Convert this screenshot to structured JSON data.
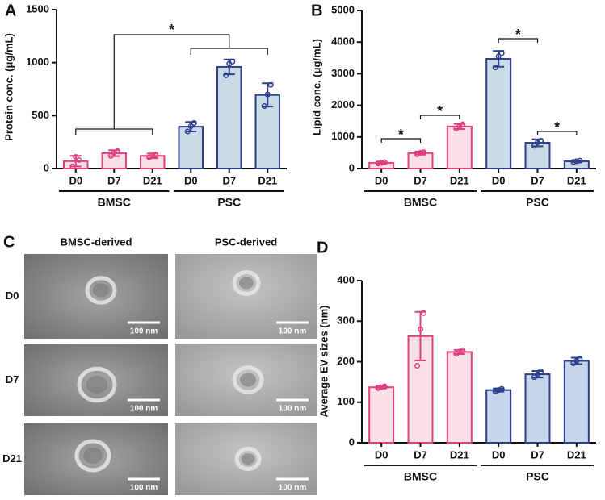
{
  "chart_data": [
    {
      "type": "bar",
      "panel_label": "A",
      "y_label": "Protein conc. (μg/mL)",
      "ylim": [
        0,
        1500
      ],
      "yticks": [
        0,
        500,
        1000,
        1500
      ],
      "groups": [
        {
          "name": "BMSC",
          "color": "#e0407f",
          "fill": "#f9dfe6",
          "categories": [
            "D0",
            "D7",
            "D21"
          ],
          "values": [
            70,
            145,
            120
          ],
          "errors": [
            50,
            28,
            22
          ],
          "points": [
            [
              20,
              110,
              80
            ],
            [
              120,
              150,
              165
            ],
            [
              105,
              125,
              130
            ]
          ]
        },
        {
          "name": "PSC",
          "color": "#2e3f8a",
          "fill": "#c9dbe6",
          "categories": [
            "D0",
            "D7",
            "D21"
          ],
          "values": [
            395,
            960,
            695
          ],
          "errors": [
            45,
            70,
            110
          ],
          "points": [
            [
              350,
              400,
              430
            ],
            [
              880,
              990,
              1010
            ],
            [
              590,
              700,
              790
            ]
          ]
        }
      ],
      "annotations": [
        {
          "text": "*"
        }
      ]
    },
    {
      "type": "bar",
      "panel_label": "B",
      "y_label": "Lipid conc. (μg/mL)",
      "ylim": [
        0,
        5000
      ],
      "yticks": [
        0,
        1000,
        2000,
        3000,
        4000,
        5000
      ],
      "groups": [
        {
          "name": "BMSC",
          "color": "#e0407f",
          "fill": "#f9dfe6",
          "categories": [
            "D0",
            "D7",
            "D21"
          ],
          "values": [
            180,
            490,
            1330
          ],
          "errors": [
            30,
            50,
            80
          ],
          "points": [
            [
              160,
              180,
              200
            ],
            [
              450,
              500,
              520
            ],
            [
              1260,
              1330,
              1400
            ]
          ]
        },
        {
          "name": "PSC",
          "color": "#2e3f8a",
          "fill": "#c9dbe6",
          "categories": [
            "D0",
            "D7",
            "D21"
          ],
          "values": [
            3470,
            815,
            230
          ],
          "errors": [
            250,
            110,
            20
          ],
          "points": [
            [
              3200,
              3550,
              3650
            ],
            [
              720,
              830,
              880
            ],
            [
              210,
              230,
              250
            ]
          ]
        }
      ],
      "annotations": [
        {
          "text": "*"
        },
        {
          "text": "*"
        },
        {
          "text": "*"
        },
        {
          "text": "*"
        }
      ]
    },
    {
      "type": "bar",
      "panel_label": "D",
      "y_label": "Average EV sizes (nm)",
      "ylim": [
        0,
        400
      ],
      "yticks": [
        0,
        100,
        200,
        300,
        400
      ],
      "groups": [
        {
          "name": "BMSC",
          "color": "#e0407f",
          "fill": "#f9dfe6",
          "categories": [
            "D0",
            "D7",
            "D21"
          ],
          "values": [
            137,
            263,
            224
          ],
          "errors": [
            3,
            60,
            5
          ],
          "points": [
            [
              135,
              137,
              139
            ],
            [
              190,
              280,
              320
            ],
            [
              220,
              225,
              228
            ]
          ]
        },
        {
          "name": "PSC",
          "color": "#2e3f8a",
          "fill": "#c7d5ec",
          "categories": [
            "D0",
            "D7",
            "D21"
          ],
          "values": [
            130,
            169,
            202
          ],
          "errors": [
            4,
            8,
            8
          ],
          "points": [
            [
              127,
              130,
              133
            ],
            [
              162,
              168,
              176
            ],
            [
              196,
              202,
              208
            ]
          ]
        }
      ],
      "annotations": []
    }
  ],
  "micrographs": {
    "panel_label": "C",
    "columns": [
      "BMSC-derived",
      "PSC-derived"
    ],
    "rows": [
      "D0",
      "D7",
      "D21"
    ],
    "scale_bar": "100 nm"
  }
}
